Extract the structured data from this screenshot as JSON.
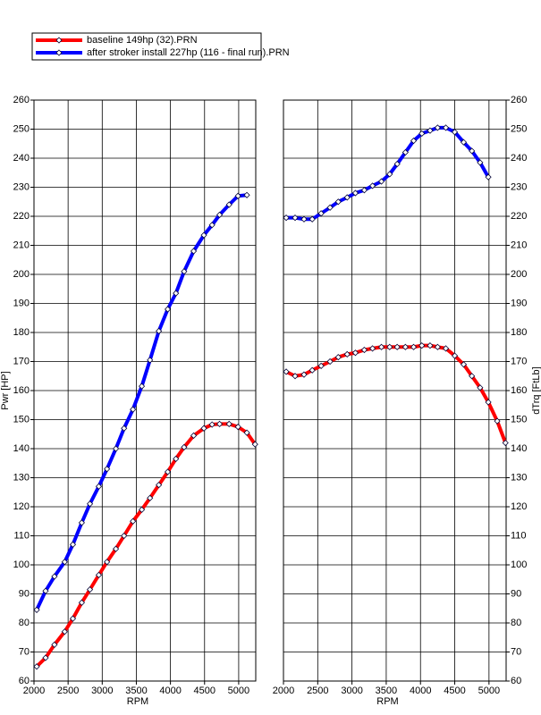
{
  "chart_data": [
    {
      "type": "line",
      "x_label": "RPM",
      "y_label": "Pwr [HP]",
      "axis_side": "left",
      "xlim": [
        2000,
        5250
      ],
      "xticks": [
        2000,
        2500,
        3000,
        3500,
        4000,
        4500,
        5000
      ],
      "ylim": [
        60,
        260
      ],
      "yticks": [
        60,
        70,
        80,
        90,
        100,
        110,
        120,
        130,
        140,
        150,
        160,
        170,
        180,
        190,
        200,
        210,
        220,
        230,
        240,
        250,
        260
      ],
      "grid": true,
      "legend": "top-left",
      "x": [
        2040,
        2170,
        2300,
        2450,
        2570,
        2700,
        2820,
        2950,
        3070,
        3200,
        3320,
        3450,
        3580,
        3700,
        3830,
        3960,
        4080,
        4200,
        4340,
        4490,
        4610,
        4720,
        4860,
        4990,
        5120,
        5240
      ],
      "series": [
        {
          "name": "baseline 149hp (32).PRN",
          "color": "#ff0000",
          "values": [
            65,
            68,
            72.5,
            77,
            81.5,
            87,
            91.5,
            96.5,
            101,
            105.5,
            110,
            115,
            119,
            123,
            127.5,
            132,
            136.5,
            140.5,
            144.5,
            147,
            148.3,
            148.5,
            148.5,
            147.5,
            145.5,
            141.5
          ]
        },
        {
          "name": "after stroker install 227hp (116 - final run).PRN",
          "color": "#0000ff",
          "values": [
            84.5,
            91,
            96,
            101,
            107,
            114.5,
            121,
            127,
            133,
            140,
            147,
            153.5,
            161.5,
            170.5,
            180.5,
            188,
            193.5,
            201,
            208,
            213.5,
            217,
            220.5,
            224,
            227,
            227.3,
            null
          ]
        }
      ]
    },
    {
      "type": "line",
      "x_label": "RPM",
      "y_label": "dTrq [FtLb]",
      "axis_side": "right",
      "xlim": [
        2000,
        5250
      ],
      "xticks": [
        2000,
        2500,
        3000,
        3500,
        4000,
        4500,
        5000
      ],
      "ylim": [
        60,
        260
      ],
      "yticks": [
        60,
        70,
        80,
        90,
        100,
        110,
        120,
        130,
        140,
        150,
        160,
        170,
        180,
        190,
        200,
        210,
        220,
        230,
        240,
        250,
        260
      ],
      "grid": true,
      "x": [
        2040,
        2170,
        2300,
        2420,
        2550,
        2680,
        2800,
        2930,
        3050,
        3180,
        3300,
        3430,
        3550,
        3660,
        3780,
        3900,
        4020,
        4140,
        4250,
        4370,
        4500,
        4630,
        4750,
        4870,
        4990,
        5120,
        5240
      ],
      "series": [
        {
          "color": "#ff0000",
          "values": [
            166.5,
            165,
            165.5,
            167,
            168.5,
            170,
            171.5,
            172.5,
            173,
            174,
            174.5,
            175,
            175,
            175,
            175,
            175,
            175.5,
            175.5,
            175,
            174.5,
            172,
            169,
            165,
            161,
            156,
            149.5,
            142
          ]
        },
        {
          "color": "#0000ff",
          "values": [
            219.5,
            219.5,
            219,
            219,
            221,
            223,
            225,
            226.5,
            228,
            229,
            230.5,
            232,
            234.5,
            238,
            242,
            246,
            248.5,
            249.5,
            250.5,
            250.5,
            249,
            245.5,
            242.5,
            238.5,
            233.5,
            null,
            null
          ]
        }
      ]
    }
  ]
}
